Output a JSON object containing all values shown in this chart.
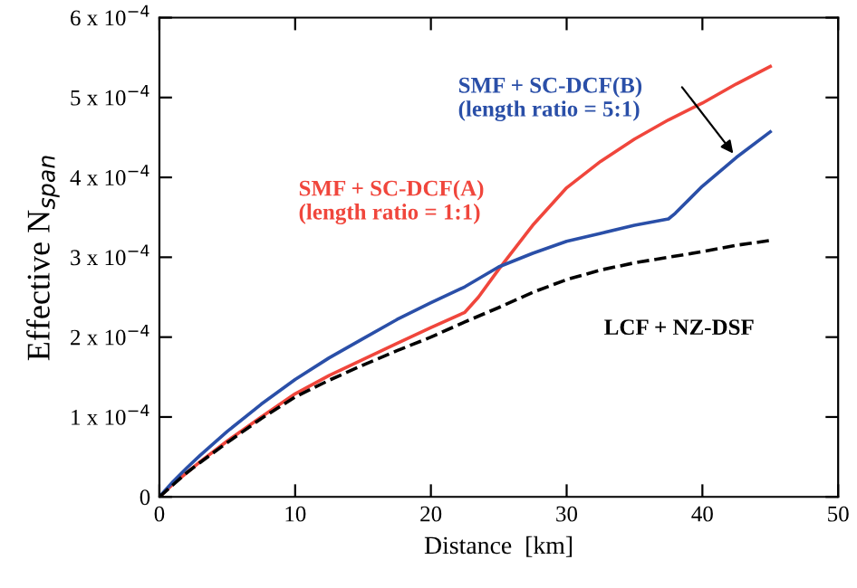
{
  "chart_data": {
    "type": "line",
    "xlabel": "Distance  [km]",
    "ylabel": "Effective N$_{span}$",
    "xlim": [
      0,
      50
    ],
    "xticks": [
      0,
      10,
      20,
      30,
      40,
      50
    ],
    "ylim": [
      0,
      0.0006
    ],
    "yticks": [
      0,
      {
        "value": 0.0001,
        "label": "1 x 10$^{−4}$"
      },
      {
        "value": 0.0002,
        "label": "2 x 10$^{−4}$"
      },
      {
        "value": 0.0003,
        "label": "3 x 10$^{−4}$"
      },
      {
        "value": 0.0004,
        "label": "4 x 10$^{−4}$"
      },
      {
        "value": 0.0005,
        "label": "5 x 10$^{−4}$"
      },
      {
        "value": 0.0006,
        "label": "6 x 10$^{−4}$"
      }
    ],
    "legend": false,
    "grid": false,
    "series": [
      {
        "name": "SMF + SC-DCF(A)\n(length ratio = 1:1)",
        "color": "#f0463c",
        "line_style": "solid",
        "x": [
          0,
          1,
          2,
          3,
          5,
          7.5,
          10,
          12.5,
          15,
          17.5,
          20,
          22.5,
          23.5,
          25,
          27.5,
          30,
          32.5,
          35,
          37.5,
          40,
          42.5,
          45
        ],
        "values": [
          0,
          1.6e-05,
          3e-05,
          4.4e-05,
          7e-05,
          0.0001,
          0.000129,
          0.000152,
          0.000172,
          0.000192,
          0.000212,
          0.000231,
          0.00025,
          0.000285,
          0.00034,
          0.000387,
          0.00042,
          0.000448,
          0.000472,
          0.000493,
          0.000517,
          0.000539
        ]
      },
      {
        "name": "SMF + SC-DCF(B)\n(length ratio = 5:1)",
        "color": "#2a4fa8",
        "line_style": "solid",
        "x": [
          0,
          1,
          2,
          3,
          5,
          7.5,
          10,
          12.5,
          15,
          17.5,
          20,
          22.5,
          25,
          27.5,
          30,
          32.5,
          35,
          37.5,
          38,
          40,
          42.5,
          45
        ],
        "values": [
          0,
          1.9e-05,
          3.6e-05,
          5.2e-05,
          8.2e-05,
          0.000116,
          0.000147,
          0.000174,
          0.000198,
          0.000222,
          0.000243,
          0.000263,
          0.000288,
          0.000305,
          0.00032,
          0.00033,
          0.00034,
          0.000348,
          0.000355,
          0.000389,
          0.000425,
          0.000457
        ]
      },
      {
        "name": "LCF + NZ-DSF",
        "color": "#000000",
        "line_style": "dashed",
        "x": [
          0,
          1,
          2,
          3,
          5,
          7.5,
          10,
          12.5,
          15,
          17.5,
          20,
          22.5,
          25,
          27.5,
          30,
          32.5,
          35,
          37.5,
          40,
          42.5,
          45
        ],
        "values": [
          0,
          1.5e-05,
          3e-05,
          4.3e-05,
          6.8e-05,
          9.8e-05,
          0.000125,
          0.000146,
          0.000165,
          0.000183,
          0.0002,
          0.000219,
          0.000237,
          0.000256,
          0.000272,
          0.000284,
          0.000293,
          0.0003,
          0.000307,
          0.000315,
          0.000321
        ]
      }
    ]
  }
}
